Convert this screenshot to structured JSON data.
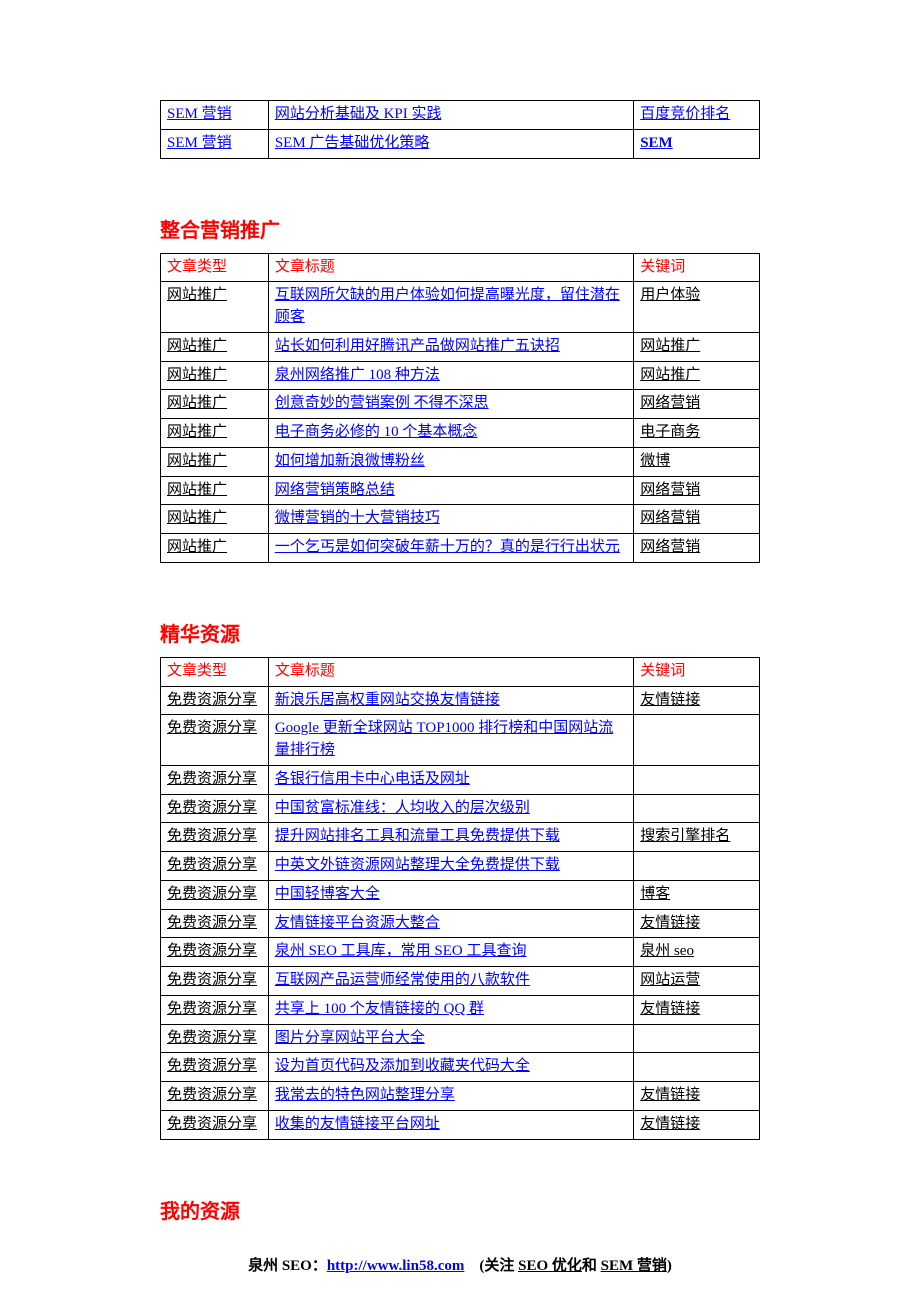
{
  "colors": {
    "link": "#0000ff",
    "heading": "#ff0000",
    "border": "#000000",
    "text": "#000000",
    "background": "#ffffff"
  },
  "typography": {
    "base_font": "SimSun",
    "base_size_pt": 11,
    "heading_size_pt": 15,
    "line_height": 1.45
  },
  "top_table": {
    "rows": [
      {
        "type": "SEM 营销",
        "type_link": true,
        "title": "网站分析基础及 KPI 实践",
        "keyword": "百度竞价排名",
        "keyword_link": true,
        "keyword_bold": false
      },
      {
        "type": "SEM 营销",
        "type_link": true,
        "title": "SEM 广告基础优化策略",
        "keyword": "SEM",
        "keyword_link": true,
        "keyword_bold": true
      }
    ]
  },
  "sections": [
    {
      "heading": "整合营销推广",
      "header": {
        "type": "文章类型",
        "title": "文章标题",
        "keyword": "关键词"
      },
      "rows": [
        {
          "type": "网站推广",
          "title": "互联网所欠缺的用户体验如何提高曝光度，留住潜在顾客",
          "keyword": "用户体验"
        },
        {
          "type": "网站推广",
          "title": "站长如何利用好腾讯产品做网站推广五诀招",
          "keyword": "网站推广"
        },
        {
          "type": "网站推广",
          "title": "泉州网络推广 108 种方法",
          "keyword": "网站推广"
        },
        {
          "type": "网站推广",
          "title": "创意奇妙的营销案例 不得不深思",
          "keyword": "网络营销"
        },
        {
          "type": "网站推广",
          "title": "电子商务必修的 10 个基本概念",
          "keyword": "电子商务"
        },
        {
          "type": "网站推广",
          "title": "如何增加新浪微博粉丝",
          "keyword": "微博"
        },
        {
          "type": "网站推广",
          "title": "网络营销策略总结",
          "keyword": "网络营销"
        },
        {
          "type": "网站推广",
          "title": "微博营销的十大营销技巧",
          "keyword": "网络营销"
        },
        {
          "type": "网站推广",
          "title": "一个乞丐是如何突破年薪十万的？真的是行行出状元",
          "keyword": "网络营销"
        }
      ]
    },
    {
      "heading": "精华资源",
      "header": {
        "type": "文章类型",
        "title": "文章标题",
        "keyword": "关键词"
      },
      "rows": [
        {
          "type": "免费资源分享",
          "title": "新浪乐居高权重网站交换友情链接",
          "keyword": "友情链接"
        },
        {
          "type": "免费资源分享",
          "title": "Google 更新全球网站 TOP1000 排行榜和中国网站流量排行榜",
          "keyword": ""
        },
        {
          "type": "免费资源分享",
          "title": "各银行信用卡中心电话及网址",
          "keyword": ""
        },
        {
          "type": "免费资源分享",
          "title": "中国贫富标准线：人均收入的层次级别",
          "keyword": ""
        },
        {
          "type": "免费资源分享",
          "title": "提升网站排名工具和流量工具免费提供下载",
          "keyword": "搜索引擎排名"
        },
        {
          "type": "免费资源分享",
          "title": "中英文外链资源网站整理大全免费提供下载",
          "keyword": ""
        },
        {
          "type": "免费资源分享",
          "title": "中国轻博客大全",
          "keyword": "博客"
        },
        {
          "type": "免费资源分享",
          "title": "友情链接平台资源大整合",
          "keyword": "友情链接"
        },
        {
          "type": "免费资源分享",
          "title": "泉州 SEO 工具库，常用 SEO 工具查询",
          "keyword": "泉州 seo"
        },
        {
          "type": "免费资源分享",
          "title": "互联网产品运营师经常使用的八款软件",
          "keyword": "网站运营"
        },
        {
          "type": "免费资源分享",
          "title": "共享上 100 个友情链接的 QQ 群",
          "keyword": "友情链接"
        },
        {
          "type": "免费资源分享",
          "title": "图片分享网站平台大全",
          "keyword": ""
        },
        {
          "type": "免费资源分享",
          "title": "设为首页代码及添加到收藏夹代码大全",
          "keyword": ""
        },
        {
          "type": "免费资源分享",
          "title": "我常去的特色网站整理分享",
          "keyword": "友情链接"
        },
        {
          "type": "免费资源分享",
          "title": "收集的友情链接平台网址",
          "keyword": "友情链接"
        }
      ]
    }
  ],
  "last_heading": "我的资源",
  "footer": {
    "label": "泉州 SEO：",
    "url": "http://www.lin58.com",
    "open": "(关注 ",
    "link1": "SEO 优化",
    "mid": "和 ",
    "link2": "SEM 营销",
    "close": ")"
  }
}
